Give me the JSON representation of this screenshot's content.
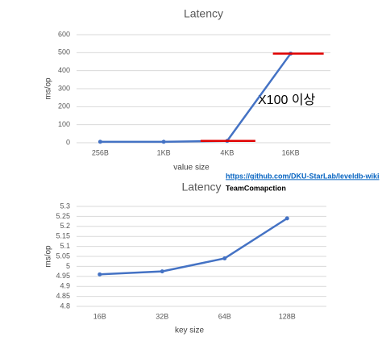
{
  "chart_data": [
    {
      "type": "line",
      "title": "Latency",
      "x_label": "value size",
      "y_label": "ms/op",
      "categories": [
        "256B",
        "1KB",
        "4KB",
        "16KB"
      ],
      "series": [
        {
          "name": "Latency",
          "color": "#4472c4",
          "values": [
            5,
            5,
            10,
            495
          ]
        }
      ],
      "ylim": [
        0,
        600
      ],
      "yticks": [
        0,
        100,
        200,
        300,
        400,
        500,
        600
      ],
      "grid": true,
      "annotations": [
        "X100 이상",
        "https://github.com/DKU-StarLab/leveldb-wiki",
        "TeamComapction"
      ]
    },
    {
      "type": "line",
      "title": "Latency",
      "x_label": "key size",
      "y_label": "ms/op",
      "categories": [
        "16B",
        "32B",
        "64B",
        "128B"
      ],
      "series": [
        {
          "name": "Latency",
          "color": "#4472c4",
          "values": [
            4.96,
            4.975,
            5.04,
            5.24
          ]
        }
      ],
      "ylim": [
        4.8,
        5.3
      ],
      "yticks": [
        4.8,
        4.85,
        4.9,
        4.95,
        5,
        5.05,
        5.1,
        5.15,
        5.2,
        5.25,
        5.3
      ],
      "grid": true
    }
  ]
}
